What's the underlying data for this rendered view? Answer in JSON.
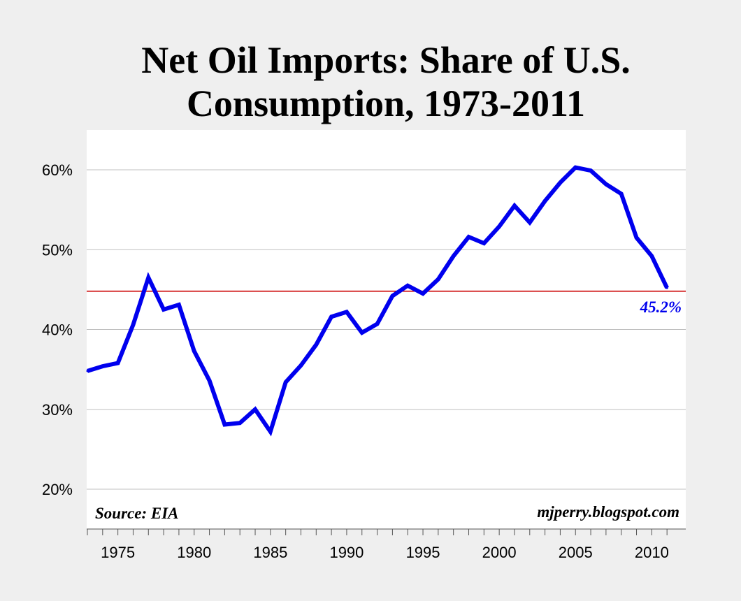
{
  "chart_data": {
    "type": "line",
    "title_lines": [
      "Net Oil Imports: Share of U.S.",
      "Consumption, 1973-2011"
    ],
    "xlabel": "",
    "ylabel": "",
    "xlim": [
      1973,
      2011
    ],
    "ylim": [
      15,
      65
    ],
    "y_ticks": [
      20,
      30,
      40,
      50,
      60
    ],
    "y_tick_labels": [
      "20%",
      "30%",
      "40%",
      "50%",
      "60%"
    ],
    "x_ticks": [
      1975,
      1980,
      1985,
      1990,
      1995,
      2000,
      2005,
      2010
    ],
    "x_tick_labels": [
      "1975",
      "1980",
      "1985",
      "1990",
      "1995",
      "2000",
      "2005",
      "2010"
    ],
    "grid": "horizontal",
    "series": [
      {
        "name": "Net oil imports share of consumption",
        "color": "#0000ee",
        "x": [
          1973,
          1974,
          1975,
          1976,
          1977,
          1978,
          1979,
          1980,
          1981,
          1982,
          1983,
          1984,
          1985,
          1986,
          1987,
          1988,
          1989,
          1990,
          1991,
          1992,
          1993,
          1994,
          1995,
          1996,
          1997,
          1998,
          1999,
          2000,
          2001,
          2002,
          2003,
          2004,
          2005,
          2006,
          2007,
          2008,
          2009,
          2010,
          2011
        ],
        "values": [
          34.8,
          35.4,
          35.8,
          40.6,
          46.5,
          42.5,
          43.1,
          37.3,
          33.6,
          28.1,
          28.3,
          30.0,
          27.2,
          33.4,
          35.5,
          38.1,
          41.6,
          42.2,
          39.6,
          40.7,
          44.2,
          45.5,
          44.5,
          46.3,
          49.2,
          51.6,
          50.8,
          52.9,
          55.5,
          53.4,
          56.1,
          58.4,
          60.3,
          59.9,
          58.2,
          57.0,
          51.5,
          49.2,
          45.2
        ]
      }
    ],
    "reference_line": {
      "value": 44.8,
      "color": "#cc0000"
    },
    "end_label": "45.2%",
    "annotations": {
      "source": "Source: EIA",
      "credit": "mjperry.blogspot.com"
    }
  },
  "colors": {
    "page_background": "#efefef",
    "plot_background": "#ffffff",
    "gridline": "#c0c0c0",
    "axis": "#555555"
  }
}
